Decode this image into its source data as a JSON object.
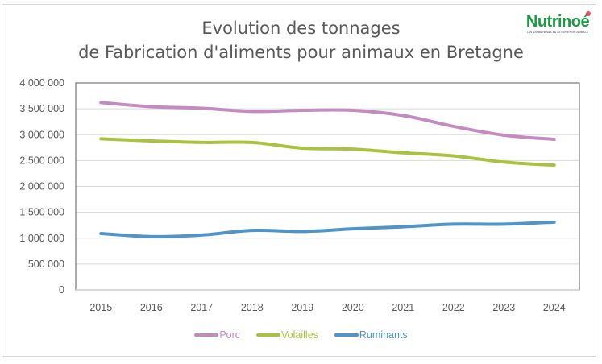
{
  "logo": {
    "name": "Nutrinoé",
    "tagline": "LES ENTREPRISES DE LA NUTRITION ANIMALE",
    "color": "#1e9a46",
    "accent": "#e8505b"
  },
  "chart_data": {
    "type": "line",
    "title": [
      "Evolution des tonnages",
      "de Fabrication d'aliments pour animaux en Bretagne"
    ],
    "xlabel": "",
    "ylabel": "",
    "categories": [
      "2015",
      "2016",
      "2017",
      "2018",
      "2019",
      "2020",
      "2021",
      "2022",
      "2023",
      "2024"
    ],
    "ylim": [
      0,
      4000000
    ],
    "yticks": [
      0,
      500000,
      1000000,
      1500000,
      2000000,
      2500000,
      3000000,
      3500000,
      4000000
    ],
    "ytick_labels": [
      "0",
      "500 000",
      "1 000 000",
      "1 500 000",
      "2 000 000",
      "2 500 000",
      "3 000 000",
      "3 500 000",
      "4 000 000"
    ],
    "grid": true,
    "legend_position": "bottom",
    "series": [
      {
        "name": "Porc",
        "color": "#c38bbf",
        "values": [
          3620000,
          3540000,
          3510000,
          3450000,
          3470000,
          3470000,
          3370000,
          3160000,
          2990000,
          2910000
        ]
      },
      {
        "name": "Volailles",
        "color": "#a9c23f",
        "values": [
          2920000,
          2880000,
          2850000,
          2850000,
          2740000,
          2720000,
          2650000,
          2590000,
          2470000,
          2410000
        ]
      },
      {
        "name": "Ruminants",
        "color": "#4f95c9",
        "values": [
          1090000,
          1030000,
          1060000,
          1150000,
          1130000,
          1180000,
          1220000,
          1270000,
          1270000,
          1310000
        ]
      }
    ]
  }
}
